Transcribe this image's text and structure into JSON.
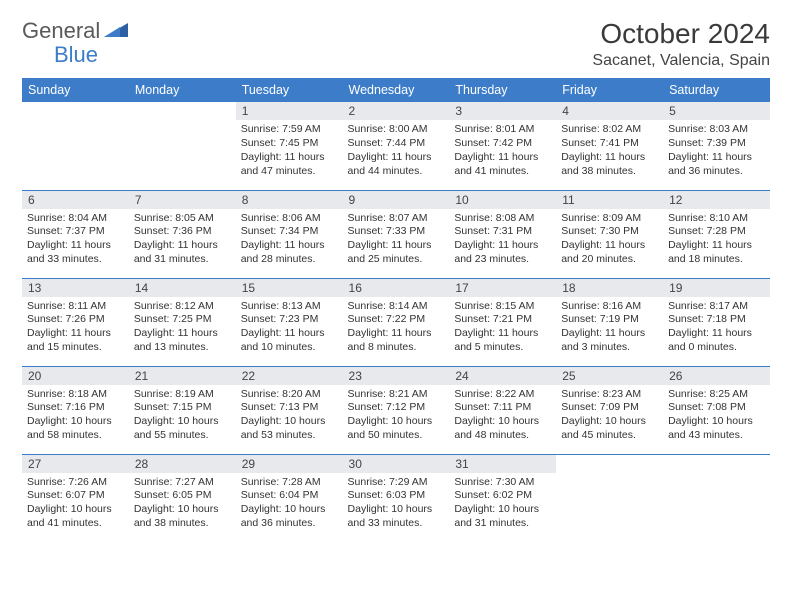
{
  "logo": {
    "primary": "General",
    "secondary": "Blue"
  },
  "title": "October 2024",
  "location": "Sacanet, Valencia, Spain",
  "colors": {
    "header_bg": "#3d7cc9",
    "header_text": "#ffffff",
    "daynum_bg": "#e7e9ec",
    "border": "#3d7cc9",
    "page_bg": "#ffffff",
    "title_color": "#3a3a3a",
    "body_text": "#333333"
  },
  "typography": {
    "title_fontsize": 28,
    "location_fontsize": 16,
    "weekday_fontsize": 12.5,
    "daynum_fontsize": 12,
    "body_fontsize": 10.5
  },
  "weekdays": [
    "Sunday",
    "Monday",
    "Tuesday",
    "Wednesday",
    "Thursday",
    "Friday",
    "Saturday"
  ],
  "weeks": [
    [
      null,
      null,
      {
        "n": "1",
        "sunrise": "7:59 AM",
        "sunset": "7:45 PM",
        "daylight": "11 hours and 47 minutes."
      },
      {
        "n": "2",
        "sunrise": "8:00 AM",
        "sunset": "7:44 PM",
        "daylight": "11 hours and 44 minutes."
      },
      {
        "n": "3",
        "sunrise": "8:01 AM",
        "sunset": "7:42 PM",
        "daylight": "11 hours and 41 minutes."
      },
      {
        "n": "4",
        "sunrise": "8:02 AM",
        "sunset": "7:41 PM",
        "daylight": "11 hours and 38 minutes."
      },
      {
        "n": "5",
        "sunrise": "8:03 AM",
        "sunset": "7:39 PM",
        "daylight": "11 hours and 36 minutes."
      }
    ],
    [
      {
        "n": "6",
        "sunrise": "8:04 AM",
        "sunset": "7:37 PM",
        "daylight": "11 hours and 33 minutes."
      },
      {
        "n": "7",
        "sunrise": "8:05 AM",
        "sunset": "7:36 PM",
        "daylight": "11 hours and 31 minutes."
      },
      {
        "n": "8",
        "sunrise": "8:06 AM",
        "sunset": "7:34 PM",
        "daylight": "11 hours and 28 minutes."
      },
      {
        "n": "9",
        "sunrise": "8:07 AM",
        "sunset": "7:33 PM",
        "daylight": "11 hours and 25 minutes."
      },
      {
        "n": "10",
        "sunrise": "8:08 AM",
        "sunset": "7:31 PM",
        "daylight": "11 hours and 23 minutes."
      },
      {
        "n": "11",
        "sunrise": "8:09 AM",
        "sunset": "7:30 PM",
        "daylight": "11 hours and 20 minutes."
      },
      {
        "n": "12",
        "sunrise": "8:10 AM",
        "sunset": "7:28 PM",
        "daylight": "11 hours and 18 minutes."
      }
    ],
    [
      {
        "n": "13",
        "sunrise": "8:11 AM",
        "sunset": "7:26 PM",
        "daylight": "11 hours and 15 minutes."
      },
      {
        "n": "14",
        "sunrise": "8:12 AM",
        "sunset": "7:25 PM",
        "daylight": "11 hours and 13 minutes."
      },
      {
        "n": "15",
        "sunrise": "8:13 AM",
        "sunset": "7:23 PM",
        "daylight": "11 hours and 10 minutes."
      },
      {
        "n": "16",
        "sunrise": "8:14 AM",
        "sunset": "7:22 PM",
        "daylight": "11 hours and 8 minutes."
      },
      {
        "n": "17",
        "sunrise": "8:15 AM",
        "sunset": "7:21 PM",
        "daylight": "11 hours and 5 minutes."
      },
      {
        "n": "18",
        "sunrise": "8:16 AM",
        "sunset": "7:19 PM",
        "daylight": "11 hours and 3 minutes."
      },
      {
        "n": "19",
        "sunrise": "8:17 AM",
        "sunset": "7:18 PM",
        "daylight": "11 hours and 0 minutes."
      }
    ],
    [
      {
        "n": "20",
        "sunrise": "8:18 AM",
        "sunset": "7:16 PM",
        "daylight": "10 hours and 58 minutes."
      },
      {
        "n": "21",
        "sunrise": "8:19 AM",
        "sunset": "7:15 PM",
        "daylight": "10 hours and 55 minutes."
      },
      {
        "n": "22",
        "sunrise": "8:20 AM",
        "sunset": "7:13 PM",
        "daylight": "10 hours and 53 minutes."
      },
      {
        "n": "23",
        "sunrise": "8:21 AM",
        "sunset": "7:12 PM",
        "daylight": "10 hours and 50 minutes."
      },
      {
        "n": "24",
        "sunrise": "8:22 AM",
        "sunset": "7:11 PM",
        "daylight": "10 hours and 48 minutes."
      },
      {
        "n": "25",
        "sunrise": "8:23 AM",
        "sunset": "7:09 PM",
        "daylight": "10 hours and 45 minutes."
      },
      {
        "n": "26",
        "sunrise": "8:25 AM",
        "sunset": "7:08 PM",
        "daylight": "10 hours and 43 minutes."
      }
    ],
    [
      {
        "n": "27",
        "sunrise": "7:26 AM",
        "sunset": "6:07 PM",
        "daylight": "10 hours and 41 minutes."
      },
      {
        "n": "28",
        "sunrise": "7:27 AM",
        "sunset": "6:05 PM",
        "daylight": "10 hours and 38 minutes."
      },
      {
        "n": "29",
        "sunrise": "7:28 AM",
        "sunset": "6:04 PM",
        "daylight": "10 hours and 36 minutes."
      },
      {
        "n": "30",
        "sunrise": "7:29 AM",
        "sunset": "6:03 PM",
        "daylight": "10 hours and 33 minutes."
      },
      {
        "n": "31",
        "sunrise": "7:30 AM",
        "sunset": "6:02 PM",
        "daylight": "10 hours and 31 minutes."
      },
      null,
      null
    ]
  ],
  "labels": {
    "sunrise_prefix": "Sunrise: ",
    "sunset_prefix": "Sunset: ",
    "daylight_prefix": "Daylight: "
  }
}
